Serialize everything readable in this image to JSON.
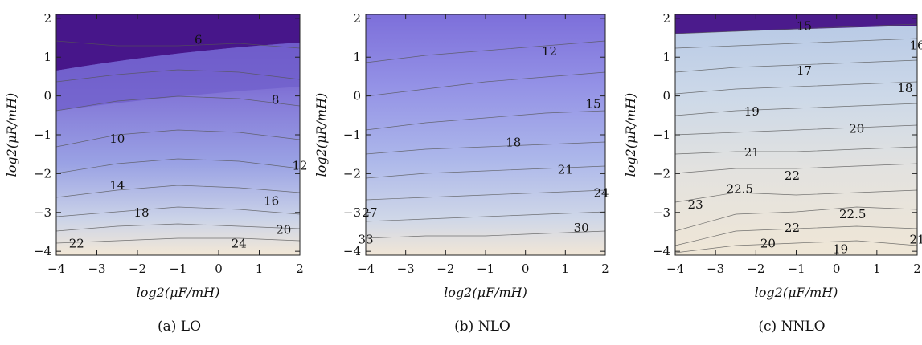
{
  "chart_data": [
    {
      "type": "heatmap",
      "caption": "(a) LO",
      "xlabel": "log2(μF/mH)",
      "ylabel": "log2(μR/mH)",
      "xlim": [
        -4,
        2
      ],
      "ylim": [
        -4.1,
        2.1
      ],
      "x_ticks": [
        "−4",
        "−3",
        "−2",
        "−1",
        "0",
        "1",
        "2"
      ],
      "y_ticks": [
        "−4",
        "−3",
        "−2",
        "−1",
        "0",
        "1",
        "2"
      ],
      "colors": {
        "low": "#47168a",
        "mid": "#8f8ae6",
        "high": "#f3e8d6"
      },
      "contour_labels": [
        {
          "text": "6",
          "x": -0.5,
          "y": 1.45
        },
        {
          "text": "8",
          "x": 1.4,
          "y": -0.1
        },
        {
          "text": "10",
          "x": -2.5,
          "y": -1.1
        },
        {
          "text": "12",
          "x": 2.0,
          "y": -1.8
        },
        {
          "text": "14",
          "x": -2.5,
          "y": -2.3
        },
        {
          "text": "16",
          "x": 1.3,
          "y": -2.7
        },
        {
          "text": "18",
          "x": -1.9,
          "y": -3.0
        },
        {
          "text": "20",
          "x": 1.6,
          "y": -3.45
        },
        {
          "text": "22",
          "x": -3.5,
          "y": -3.8
        },
        {
          "text": "24",
          "x": 0.5,
          "y": -3.8
        }
      ]
    },
    {
      "type": "heatmap",
      "caption": "(b) NLO",
      "xlabel": "log2(μF/mH)",
      "ylabel": "log2(μR/mH)",
      "xlim": [
        -4,
        2
      ],
      "ylim": [
        -4.1,
        2.1
      ],
      "x_ticks": [
        "−4",
        "−3",
        "−2",
        "−1",
        "0",
        "1",
        "2"
      ],
      "y_ticks": [
        "−4",
        "−3",
        "−2",
        "−1",
        "0",
        "1",
        "2"
      ],
      "colors": {
        "low": "#8478df",
        "mid": "#a9b0e8",
        "high": "#f0e6d8"
      },
      "contour_labels": [
        {
          "text": "12",
          "x": 0.6,
          "y": 1.15
        },
        {
          "text": "15",
          "x": 1.7,
          "y": -0.2
        },
        {
          "text": "18",
          "x": -0.3,
          "y": -1.2
        },
        {
          "text": "21",
          "x": 1.0,
          "y": -1.9
        },
        {
          "text": "24",
          "x": 1.9,
          "y": -2.5
        },
        {
          "text": "27",
          "x": -3.9,
          "y": -3.0
        },
        {
          "text": "30",
          "x": 1.4,
          "y": -3.4
        },
        {
          "text": "33",
          "x": -4.0,
          "y": -3.7
        }
      ]
    },
    {
      "type": "heatmap",
      "caption": "(c) NNLO",
      "xlabel": "log2(μF/mH)",
      "ylabel": "log2(μR/mH)",
      "xlim": [
        -4,
        2
      ],
      "ylim": [
        -4.1,
        2.1
      ],
      "x_ticks": [
        "−4",
        "−3",
        "−2",
        "−1",
        "0",
        "1",
        "2"
      ],
      "y_ticks": [
        "−4",
        "−3",
        "−2",
        "−1",
        "0",
        "1",
        "2"
      ],
      "colors": {
        "low": "#4b1b8c",
        "mid": "#c4d2e6",
        "high": "#efe6d6"
      },
      "contour_labels": [
        {
          "text": "15",
          "x": -0.8,
          "y": 1.8
        },
        {
          "text": "16",
          "x": 2.0,
          "y": 1.3
        },
        {
          "text": "17",
          "x": -0.8,
          "y": 0.65
        },
        {
          "text": "18",
          "x": 1.7,
          "y": 0.2
        },
        {
          "text": "19",
          "x": -2.1,
          "y": -0.4
        },
        {
          "text": "20",
          "x": 0.5,
          "y": -0.85
        },
        {
          "text": "21",
          "x": -2.1,
          "y": -1.45
        },
        {
          "text": "22",
          "x": -1.1,
          "y": -2.05
        },
        {
          "text": "22.5",
          "x": -2.4,
          "y": -2.4
        },
        {
          "text": "23",
          "x": -3.5,
          "y": -2.8
        },
        {
          "text": "22.5",
          "x": 0.4,
          "y": -3.05
        },
        {
          "text": "22",
          "x": -1.1,
          "y": -3.4
        },
        {
          "text": "20",
          "x": -1.7,
          "y": -3.8
        },
        {
          "text": "19",
          "x": 0.1,
          "y": -3.95
        },
        {
          "text": "21",
          "x": 2.0,
          "y": -3.7
        }
      ]
    }
  ]
}
